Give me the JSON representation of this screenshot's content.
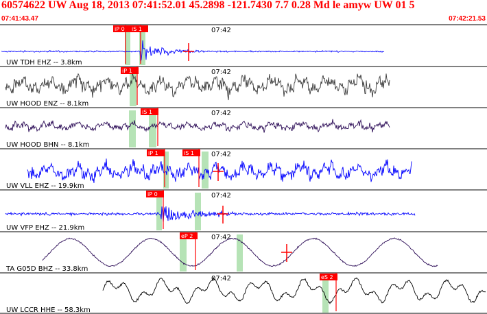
{
  "header": {
    "title": "60574622 UW Aug 18, 2013 07:41:52.01    45.2898 -121.7430  7.7 0.28 Md le amyw UW 01   5",
    "start_time": "07:41:43.47",
    "end_time": "07:42:21.53"
  },
  "minute_mark": "07:42",
  "colors": {
    "header": "#ff0000",
    "pick": "#ff0000",
    "window": "#b6e3b6",
    "blue_trace": "#0000ff",
    "dark_trace": "#3a3a3a",
    "purple_trace": "#2a0a55",
    "black_trace": "#000000"
  },
  "traces": [
    {
      "label": "UW TDH EHZ -- 3.8km",
      "picks": [
        "iP 0",
        "iS 1"
      ]
    },
    {
      "label": "UW HOOD ENZ -- 8.1km",
      "picks": [
        "iP 1"
      ]
    },
    {
      "label": "UW HOOD BHN -- 8.1km",
      "picks": [
        "iS 1"
      ]
    },
    {
      "label": "UW VLL EHZ -- 19.9km",
      "picks": [
        "iP 1",
        "iS 1"
      ]
    },
    {
      "label": "UW VFP EHZ -- 21.9km",
      "picks": [
        "iP 0"
      ]
    },
    {
      "label": "TA G05D BHZ -- 33.8km",
      "picks": [
        "eP 2"
      ]
    },
    {
      "label": "UW LCCR HHE -- 58.3km",
      "picks": [
        "eS 2"
      ]
    }
  ]
}
